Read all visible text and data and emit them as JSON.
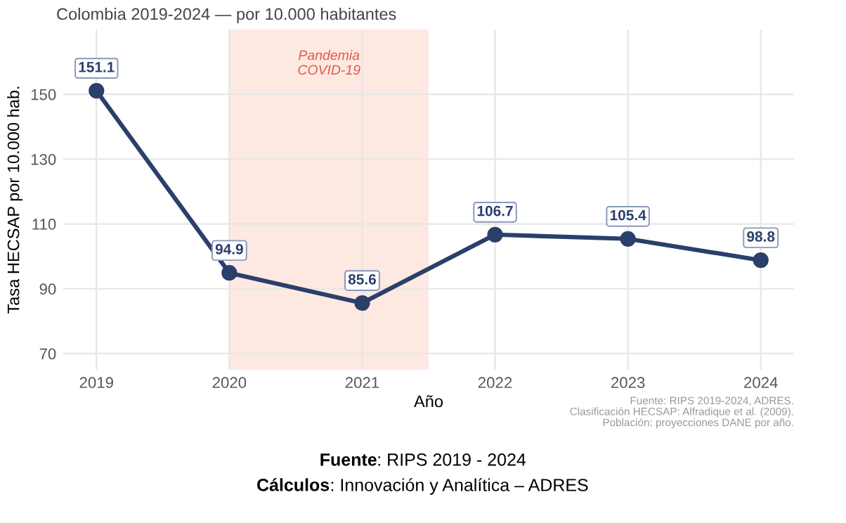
{
  "chart_data": {
    "type": "line",
    "subtitle": "Colombia 2019-2024 — por 10.000 habitantes",
    "xlabel": "Año",
    "ylabel": "Tasa HECSAP por 10.000 hab.",
    "x": [
      2019,
      2020,
      2021,
      2022,
      2023,
      2024
    ],
    "series": [
      {
        "color": "#2b3f6b",
        "values": [
          151.1,
          94.9,
          85.6,
          106.7,
          105.4,
          98.8
        ]
      }
    ],
    "data_labels": true,
    "marker": "circle",
    "line_style": "solid",
    "xlim": [
      2018.75,
      2024.25
    ],
    "xticks": [
      2019,
      2020,
      2021,
      2022,
      2023,
      2024
    ],
    "ylim": [
      65,
      170
    ],
    "yticks": [
      70,
      90,
      110,
      130,
      150
    ],
    "grid": true,
    "legend": false,
    "bands": [
      {
        "axis": "x",
        "from": 2020,
        "to": 2021.5,
        "label": "Pandemia\nCOVID-19",
        "color": "#fde9e2"
      }
    ],
    "annotations": [
      "Fuente: RIPS 2019-2024, ADRES.\nClasificación HECSAP: Alfradique et al. (2009).\nPoblación: proyecciones DANE por año.",
      "Fuente: RIPS 2019 - 2024",
      "Cálculos: Innovación y Analítica – ADRES"
    ]
  }
}
